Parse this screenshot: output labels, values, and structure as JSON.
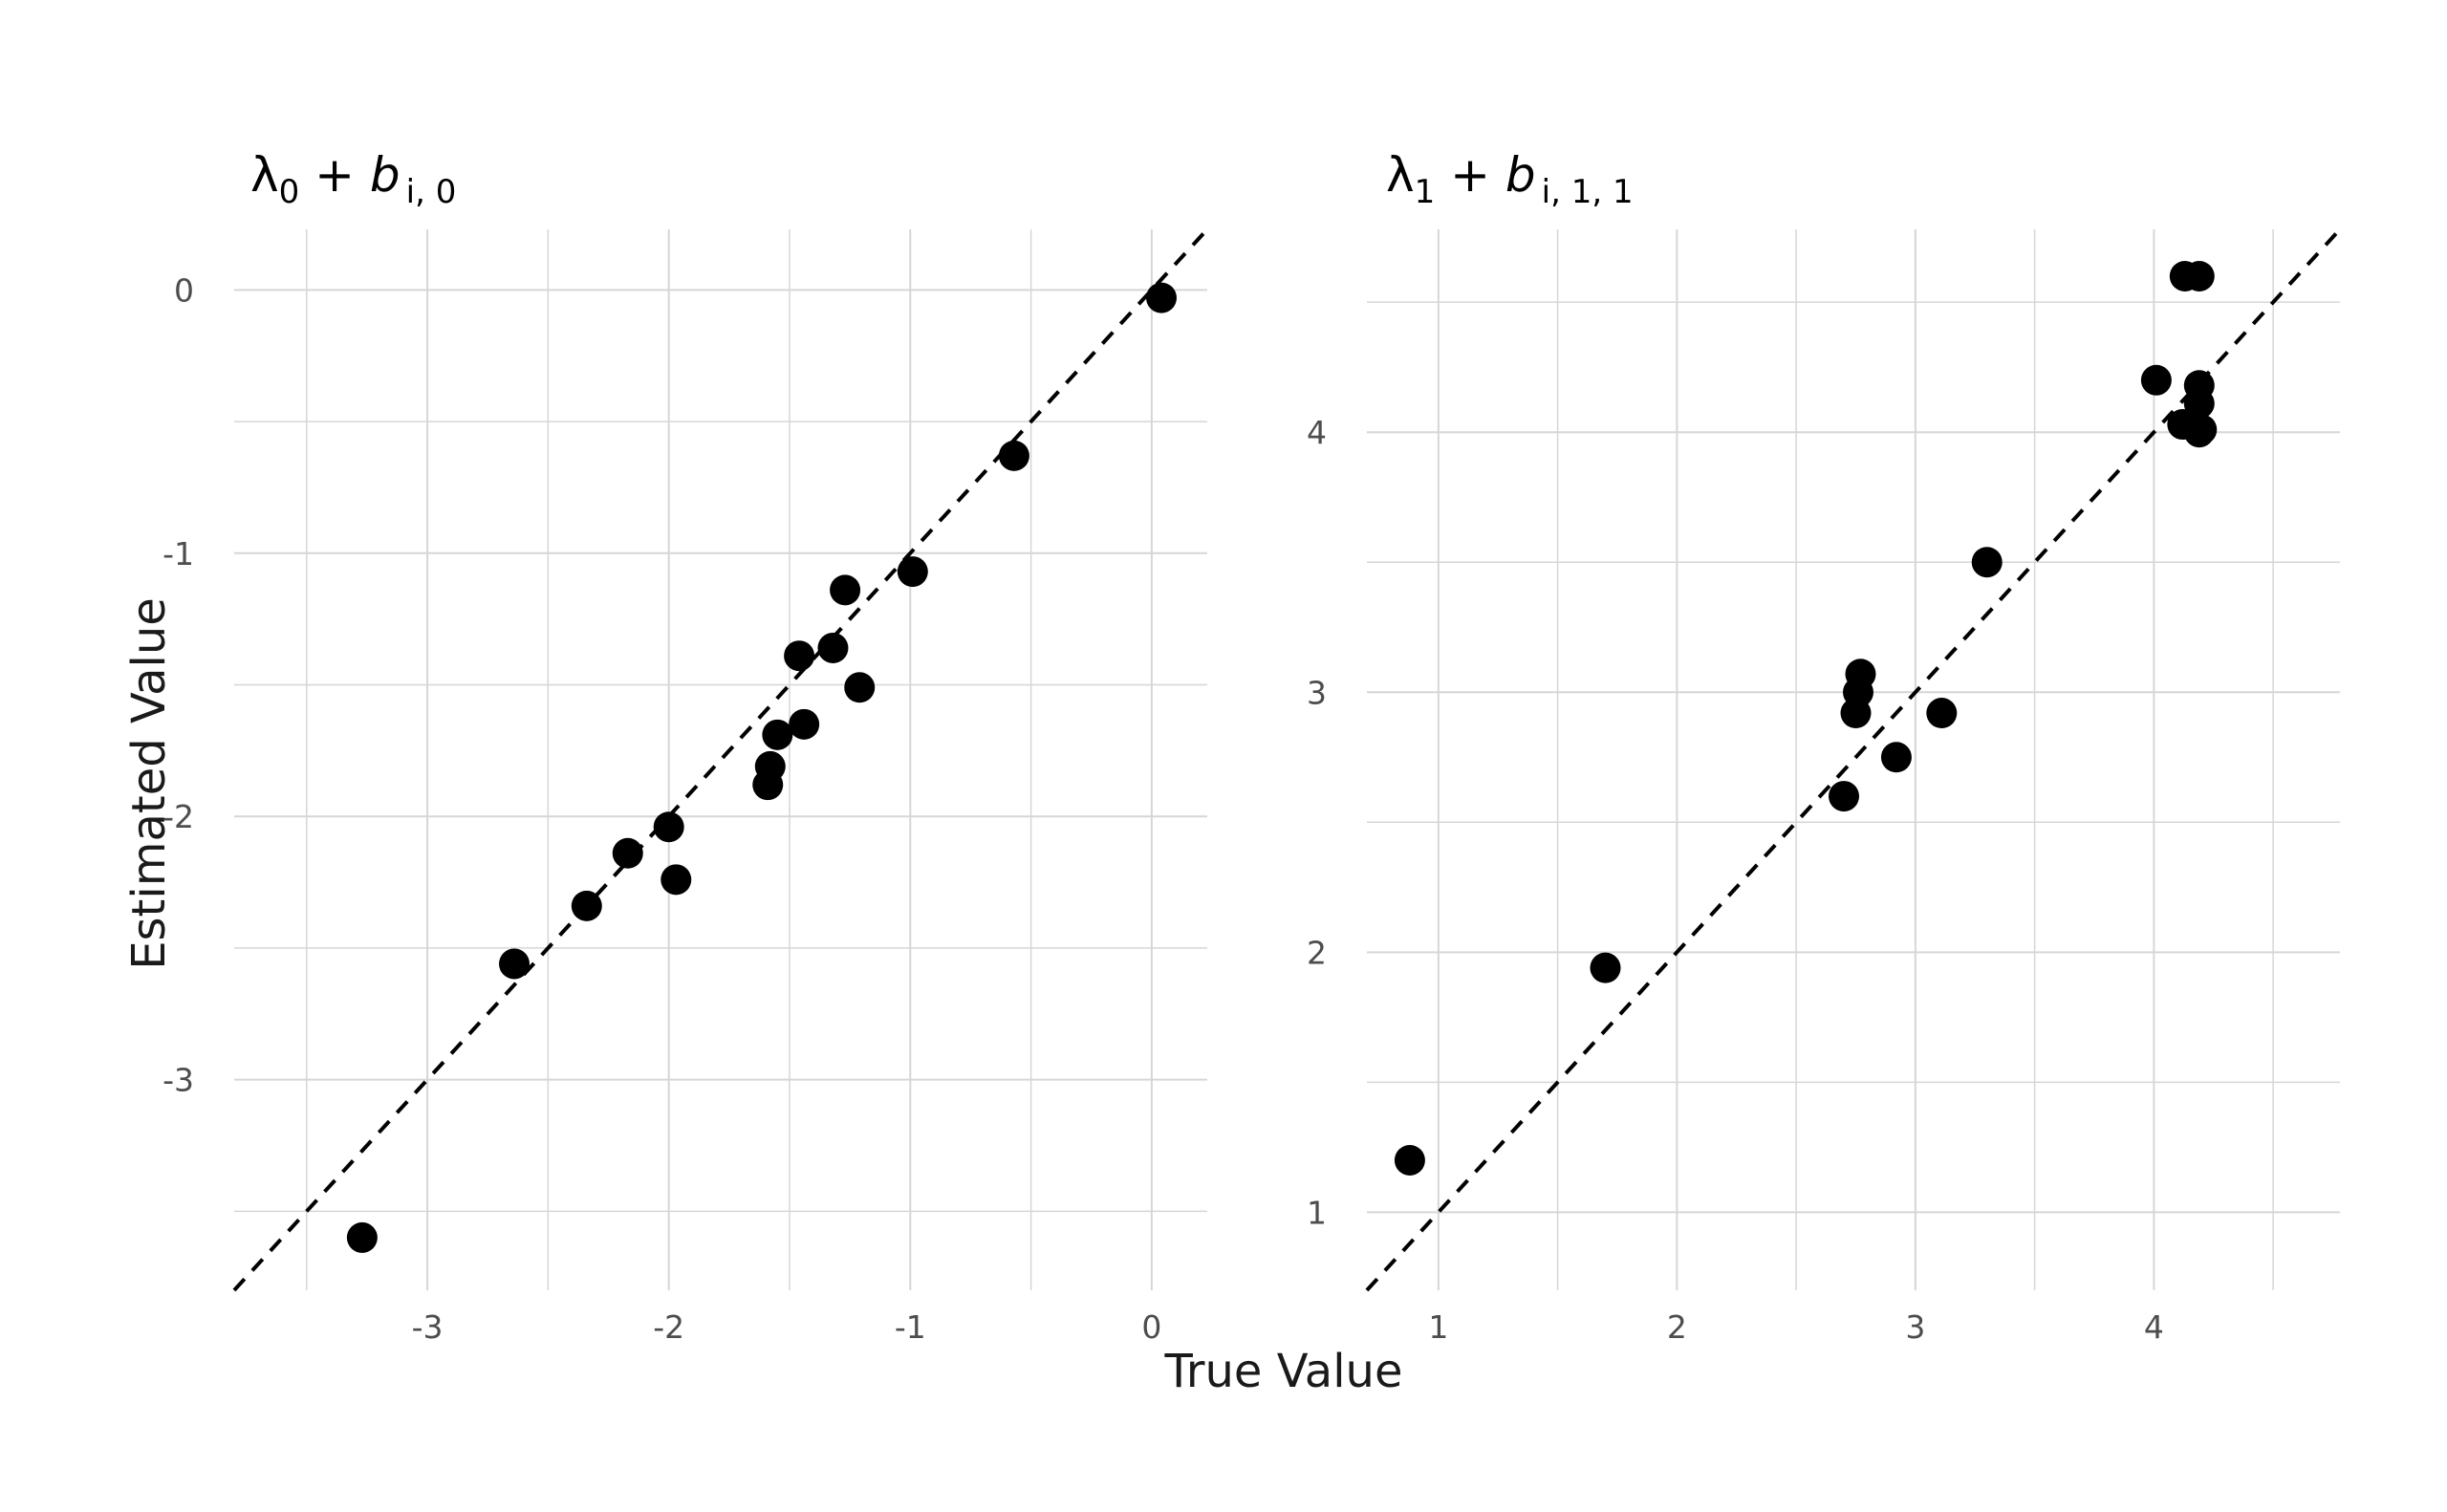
{
  "figure": {
    "xlabel": "True Value",
    "ylabel": "Estimated Value"
  },
  "style": {
    "point_color": "#000000",
    "grid_color": "#d6d6d6",
    "background": "#ffffff",
    "identity_line_color": "#000000"
  },
  "chart_data": [
    {
      "type": "scatter",
      "title": "λ0 + b i, 0",
      "title_parts": {
        "main": "λ",
        "main_sub": "0",
        "plus": " + ",
        "b": "b",
        "b_sub": "i, 0"
      },
      "xlim": [
        -3.8,
        0.23
      ],
      "ylim": [
        -3.8,
        0.23
      ],
      "xticks": [
        -3,
        -2,
        -1,
        0
      ],
      "xtick_labels": [
        "-3",
        "-2",
        "-1",
        "0"
      ],
      "yticks": [
        -3,
        -2,
        -1,
        0
      ],
      "ytick_labels": [
        "-3",
        "-2",
        "-1",
        "0"
      ],
      "grid": true,
      "reference_line": "y = x (dashed)",
      "x": [
        -3.27,
        -2.64,
        -2.34,
        -2.17,
        -2.0,
        -1.97,
        -1.59,
        -1.58,
        -1.55,
        -1.46,
        -1.44,
        -1.32,
        -1.27,
        -1.21,
        -0.99,
        -0.57,
        0.04
      ],
      "y": [
        -3.6,
        -2.56,
        -2.34,
        -2.14,
        -2.04,
        -2.24,
        -1.88,
        -1.81,
        -1.69,
        -1.39,
        -1.65,
        -1.36,
        -1.14,
        -1.51,
        -1.07,
        -0.63,
        -0.03
      ]
    },
    {
      "type": "scatter",
      "title": "λ1 + b i, 1, 1",
      "title_parts": {
        "main": "λ",
        "main_sub": "1",
        "plus": " + ",
        "b": "b",
        "b_sub": "i, 1, 1"
      },
      "xlim": [
        0.7,
        4.78
      ],
      "ylim": [
        0.7,
        4.78
      ],
      "xticks": [
        1,
        2,
        3,
        4
      ],
      "xtick_labels": [
        "1",
        "2",
        "3",
        "4"
      ],
      "yticks": [
        1,
        2,
        3,
        4
      ],
      "ytick_labels": [
        "1",
        "2",
        "3",
        "4"
      ],
      "grid": true,
      "reference_line": "y = x (dashed)",
      "x": [
        0.88,
        1.7,
        2.7,
        2.75,
        2.76,
        2.77,
        2.92,
        3.11,
        3.3,
        4.01,
        4.12,
        4.13,
        4.19,
        4.19,
        4.19,
        4.19,
        4.2
      ],
      "y": [
        1.2,
        1.94,
        2.6,
        2.92,
        3.0,
        3.07,
        2.75,
        2.92,
        3.5,
        4.2,
        4.03,
        4.6,
        4.6,
        4.18,
        4.11,
        4.0,
        4.01
      ]
    }
  ]
}
